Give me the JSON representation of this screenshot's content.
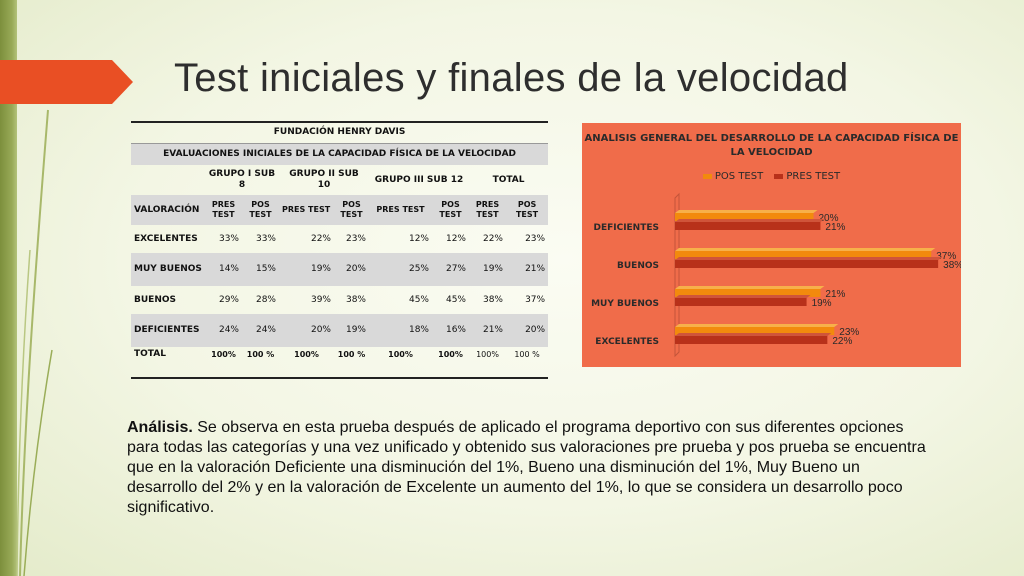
{
  "slide": {
    "title": "Test iniciales y finales de la velocidad",
    "accent_color": "#e94f24"
  },
  "table": {
    "org": "FUNDACIÓN HENRY DAVIS",
    "eval_title": "EVALUACIONES INICIALES DE LA CAPACIDAD FÍSICA DE LA VELOCIDAD",
    "groups": [
      "GRUPO I SUB 8",
      "GRUPO II SUB 10",
      "GRUPO III SUB 12",
      "TOTAL"
    ],
    "valoracion_label": "VALORACIÓN",
    "subheaders": [
      "PRES TEST",
      "POS TEST",
      "PRES TEST",
      "POS TEST",
      "PRES TEST",
      "POS TEST",
      "PRES TEST",
      "POS TEST"
    ],
    "rows": [
      {
        "cat": "EXCELENTES",
        "values": [
          "33%",
          "33%",
          "22%",
          "23%",
          "12%",
          "12%",
          "22%",
          "23%"
        ]
      },
      {
        "cat": "MUY BUENOS",
        "values": [
          "14%",
          "15%",
          "19%",
          "20%",
          "25%",
          "27%",
          "19%",
          "21%"
        ]
      },
      {
        "cat": "BUENOS",
        "values": [
          "29%",
          "28%",
          "39%",
          "38%",
          "45%",
          "45%",
          "38%",
          "37%"
        ]
      },
      {
        "cat": "DEFICIENTES",
        "values": [
          "24%",
          "24%",
          "20%",
          "19%",
          "18%",
          "16%",
          "21%",
          "20%"
        ]
      }
    ],
    "total": {
      "cat": "TOTAL",
      "values": [
        "100%",
        "100 %",
        "100%",
        "100 %",
        "100%",
        "100%",
        "100%",
        "100 %"
      ]
    }
  },
  "chart_data": {
    "type": "bar",
    "orientation": "horizontal",
    "title": "ANALISIS GENERAL DEL DESARROLLO DE LA CAPACIDAD FÍSICA DE LA VELOCIDAD",
    "categories": [
      "DEFICIENTES",
      "BUENOS",
      "MUY BUENOS",
      "EXCELENTES"
    ],
    "series": [
      {
        "name": "POS TEST",
        "values": [
          20,
          37,
          21,
          23
        ],
        "labels": [
          "20%",
          "37%",
          "21%",
          "23%"
        ],
        "color": "#f28a0d"
      },
      {
        "name": "PRES TEST",
        "values": [
          21,
          38,
          19,
          22
        ],
        "labels": [
          "21%",
          "38%",
          "19%",
          "22%"
        ],
        "color": "#b8311a"
      }
    ],
    "xlim": [
      0,
      40
    ],
    "legend_position": "top",
    "background": "#f06c4a"
  },
  "analysis": {
    "label": "Análisis.",
    "text": " Se observa en esta prueba después de aplicado el programa deportivo con sus diferentes opciones para todas las categorías y una vez unificado y obtenido sus valoraciones pre prueba y pos prueba se encuentra que en la valoración Deficiente una disminución del 1%, Bueno una disminución del 1%, Muy Bueno un desarrollo del 2% y en la valoración de Excelente  un aumento del 1%, lo que se considera un desarrollo poco significativo."
  }
}
